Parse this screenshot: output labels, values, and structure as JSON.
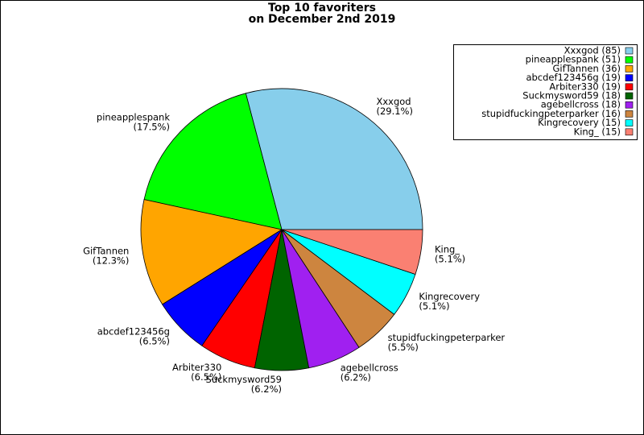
{
  "chart_data": {
    "type": "pie",
    "title": [
      "Top 10 favoriters",
      "on December 2nd 2019"
    ],
    "categories": [
      "Xxxgod",
      "pineapplespank",
      "GifTannen",
      "abcdef123456g",
      "Arbiter330",
      "Suckmysword59",
      "agebellcross",
      "stupidfuckingpeterparker",
      "Kingrecovery",
      "King_"
    ],
    "values": [
      85,
      51,
      36,
      19,
      19,
      18,
      18,
      16,
      15,
      15
    ],
    "percent_labels": [
      "(29.1%)",
      "(17.5%)",
      "(12.3%)",
      "(6.5%)",
      "(6.5%)",
      "(6.2%)",
      "(6.2%)",
      "(5.5%)",
      "(5.1%)",
      "(5.1%)"
    ],
    "legend_labels": [
      "Xxxgod (85)",
      "pineapplespank (51)",
      "GifTannen (36)",
      "abcdef123456g (19)",
      "Arbiter330 (19)",
      "Suckmysword59 (18)",
      "agebellcross (18)",
      "stupidfuckingpeterparker (16)",
      "Kingrecovery (15)",
      "King_ (15)"
    ],
    "colors": [
      "#87ceeb",
      "#00ff00",
      "#ffa500",
      "#0000ff",
      "#ff0000",
      "#006400",
      "#a020f0",
      "#cd853f",
      "#00ffff",
      "#fa8072"
    ],
    "legend": "upper right"
  }
}
